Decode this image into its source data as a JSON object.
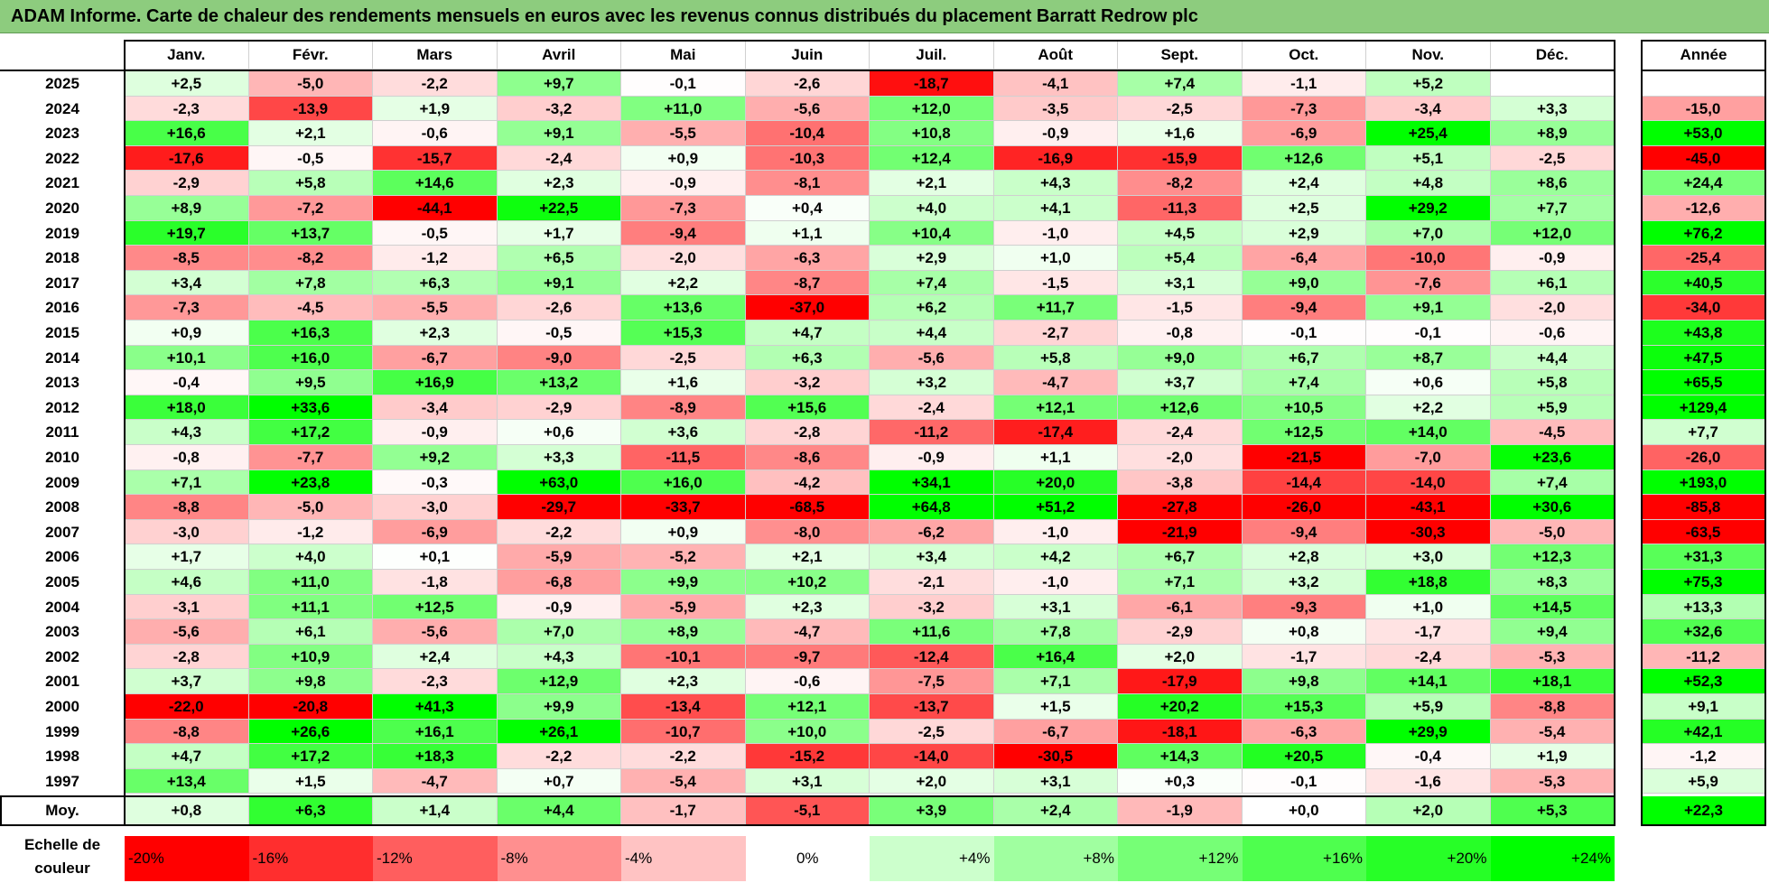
{
  "title": "ADAM Informe. Carte de chaleur des rendements mensuels en euros avec les revenus connus distribués du placement Barratt Redrow plc",
  "chart_data": {
    "type": "heatmap",
    "columns": [
      "Janv.",
      "Févr.",
      "Mars",
      "Avril",
      "Mai",
      "Juin",
      "Juil.",
      "Août",
      "Sept.",
      "Oct.",
      "Nov.",
      "Déc."
    ],
    "annual_header": "Année",
    "average_label": "Moy.",
    "rows": [
      {
        "year": "2025",
        "values": [
          "+2,5",
          "-5,0",
          "-2,2",
          "+9,7",
          "-0,1",
          "-2,6",
          "-18,7",
          "-4,1",
          "+7,4",
          "-1,1",
          "+5,2",
          ""
        ],
        "annual": ""
      },
      {
        "year": "2024",
        "values": [
          "-2,3",
          "-13,9",
          "+1,9",
          "-3,2",
          "+11,0",
          "-5,6",
          "+12,0",
          "-3,5",
          "-2,5",
          "-7,3",
          "-3,4",
          "+3,3"
        ],
        "annual": "-15,0"
      },
      {
        "year": "2023",
        "values": [
          "+16,6",
          "+2,1",
          "-0,6",
          "+9,1",
          "-5,5",
          "-10,4",
          "+10,8",
          "-0,9",
          "+1,6",
          "-6,9",
          "+25,4",
          "+8,9"
        ],
        "annual": "+53,0"
      },
      {
        "year": "2022",
        "values": [
          "-17,6",
          "-0,5",
          "-15,7",
          "-2,4",
          "+0,9",
          "-10,3",
          "+12,4",
          "-16,9",
          "-15,9",
          "+12,6",
          "+5,1",
          "-2,5"
        ],
        "annual": "-45,0"
      },
      {
        "year": "2021",
        "values": [
          "-2,9",
          "+5,8",
          "+14,6",
          "+2,3",
          "-0,9",
          "-8,1",
          "+2,1",
          "+4,3",
          "-8,2",
          "+2,4",
          "+4,8",
          "+8,6"
        ],
        "annual": "+24,4"
      },
      {
        "year": "2020",
        "values": [
          "+8,9",
          "-7,2",
          "-44,1",
          "+22,5",
          "-7,3",
          "+0,4",
          "+4,0",
          "+4,1",
          "-11,3",
          "+2,5",
          "+29,2",
          "+7,7"
        ],
        "annual": "-12,6"
      },
      {
        "year": "2019",
        "values": [
          "+19,7",
          "+13,7",
          "-0,5",
          "+1,7",
          "-9,4",
          "+1,1",
          "+10,4",
          "-1,0",
          "+4,5",
          "+2,9",
          "+7,0",
          "+12,0"
        ],
        "annual": "+76,2"
      },
      {
        "year": "2018",
        "values": [
          "-8,5",
          "-8,2",
          "-1,2",
          "+6,5",
          "-2,0",
          "-6,3",
          "+2,9",
          "+1,0",
          "+5,4",
          "-6,4",
          "-10,0",
          "-0,9"
        ],
        "annual": "-25,4"
      },
      {
        "year": "2017",
        "values": [
          "+3,4",
          "+7,8",
          "+6,3",
          "+9,1",
          "+2,2",
          "-8,7",
          "+7,4",
          "-1,5",
          "+3,1",
          "+9,0",
          "-7,6",
          "+6,1"
        ],
        "annual": "+40,5"
      },
      {
        "year": "2016",
        "values": [
          "-7,3",
          "-4,5",
          "-5,5",
          "-2,6",
          "+13,6",
          "-37,0",
          "+6,2",
          "+11,7",
          "-1,5",
          "-9,4",
          "+9,1",
          "-2,0"
        ],
        "annual": "-34,0"
      },
      {
        "year": "2015",
        "values": [
          "+0,9",
          "+16,3",
          "+2,3",
          "-0,5",
          "+15,3",
          "+4,7",
          "+4,4",
          "-2,7",
          "-0,8",
          "-0,1",
          "-0,1",
          "-0,6"
        ],
        "annual": "+43,8"
      },
      {
        "year": "2014",
        "values": [
          "+10,1",
          "+16,0",
          "-6,7",
          "-9,0",
          "-2,5",
          "+6,3",
          "-5,6",
          "+5,8",
          "+9,0",
          "+6,7",
          "+8,7",
          "+4,4"
        ],
        "annual": "+47,5"
      },
      {
        "year": "2013",
        "values": [
          "-0,4",
          "+9,5",
          "+16,9",
          "+13,2",
          "+1,6",
          "-3,2",
          "+3,2",
          "-4,7",
          "+3,7",
          "+7,4",
          "+0,6",
          "+5,8"
        ],
        "annual": "+65,5"
      },
      {
        "year": "2012",
        "values": [
          "+18,0",
          "+33,6",
          "-3,4",
          "-2,9",
          "-8,9",
          "+15,6",
          "-2,4",
          "+12,1",
          "+12,6",
          "+10,5",
          "+2,2",
          "+5,9"
        ],
        "annual": "+129,4"
      },
      {
        "year": "2011",
        "values": [
          "+4,3",
          "+17,2",
          "-0,9",
          "+0,6",
          "+3,6",
          "-2,8",
          "-11,2",
          "-17,4",
          "-2,4",
          "+12,5",
          "+14,0",
          "-4,5"
        ],
        "annual": "+7,7"
      },
      {
        "year": "2010",
        "values": [
          "-0,8",
          "-7,7",
          "+9,2",
          "+3,3",
          "-11,5",
          "-8,6",
          "-0,9",
          "+1,1",
          "-2,0",
          "-21,5",
          "-7,0",
          "+23,6"
        ],
        "annual": "-26,0"
      },
      {
        "year": "2009",
        "values": [
          "+7,1",
          "+23,8",
          "-0,3",
          "+63,0",
          "+16,0",
          "-4,2",
          "+34,1",
          "+20,0",
          "-3,8",
          "-14,4",
          "-14,0",
          "+7,4"
        ],
        "annual": "+193,0"
      },
      {
        "year": "2008",
        "values": [
          "-8,8",
          "-5,0",
          "-3,0",
          "-29,7",
          "-33,7",
          "-68,5",
          "+64,8",
          "+51,2",
          "-27,8",
          "-26,0",
          "-43,1",
          "+30,6"
        ],
        "annual": "-85,8"
      },
      {
        "year": "2007",
        "values": [
          "-3,0",
          "-1,2",
          "-6,9",
          "-2,2",
          "+0,9",
          "-8,0",
          "-6,2",
          "-1,0",
          "-21,9",
          "-9,4",
          "-30,3",
          "-5,0"
        ],
        "annual": "-63,5"
      },
      {
        "year": "2006",
        "values": [
          "+1,7",
          "+4,0",
          "+0,1",
          "-5,9",
          "-5,2",
          "+2,1",
          "+3,4",
          "+4,2",
          "+6,7",
          "+2,8",
          "+3,0",
          "+12,3"
        ],
        "annual": "+31,3"
      },
      {
        "year": "2005",
        "values": [
          "+4,6",
          "+11,0",
          "-1,8",
          "-6,8",
          "+9,9",
          "+10,2",
          "-2,1",
          "-1,0",
          "+7,1",
          "+3,2",
          "+18,8",
          "+8,3"
        ],
        "annual": "+75,3"
      },
      {
        "year": "2004",
        "values": [
          "-3,1",
          "+11,1",
          "+12,5",
          "-0,9",
          "-5,9",
          "+2,3",
          "-3,2",
          "+3,1",
          "-6,1",
          "-9,3",
          "+1,0",
          "+14,5"
        ],
        "annual": "+13,3"
      },
      {
        "year": "2003",
        "values": [
          "-5,6",
          "+6,1",
          "-5,6",
          "+7,0",
          "+8,9",
          "-4,7",
          "+11,6",
          "+7,8",
          "-2,9",
          "+0,8",
          "-1,7",
          "+9,4"
        ],
        "annual": "+32,6"
      },
      {
        "year": "2002",
        "values": [
          "-2,8",
          "+10,9",
          "+2,4",
          "+4,3",
          "-10,1",
          "-9,7",
          "-12,4",
          "+16,4",
          "+2,0",
          "-1,7",
          "-2,4",
          "-5,3"
        ],
        "annual": "-11,2"
      },
      {
        "year": "2001",
        "values": [
          "+3,7",
          "+9,8",
          "-2,3",
          "+12,9",
          "+2,3",
          "-0,6",
          "-7,5",
          "+7,1",
          "-17,9",
          "+9,8",
          "+14,1",
          "+18,1"
        ],
        "annual": "+52,3"
      },
      {
        "year": "2000",
        "values": [
          "-22,0",
          "-20,8",
          "+41,3",
          "+9,9",
          "-13,4",
          "+12,1",
          "-13,7",
          "+1,5",
          "+20,2",
          "+15,3",
          "+5,9",
          "-8,8"
        ],
        "annual": "+9,1"
      },
      {
        "year": "1999",
        "values": [
          "-8,8",
          "+26,6",
          "+16,1",
          "+26,1",
          "-10,7",
          "+10,0",
          "-2,5",
          "-6,7",
          "-18,1",
          "-6,3",
          "+29,9",
          "-5,4"
        ],
        "annual": "+42,1"
      },
      {
        "year": "1998",
        "values": [
          "+4,7",
          "+17,2",
          "+18,3",
          "-2,2",
          "-2,2",
          "-15,2",
          "-14,0",
          "-30,5",
          "+14,3",
          "+20,5",
          "-0,4",
          "+1,9"
        ],
        "annual": "-1,2"
      },
      {
        "year": "1997",
        "values": [
          "+13,4",
          "+1,5",
          "-4,7",
          "+0,7",
          "-5,4",
          "+3,1",
          "+2,0",
          "+3,1",
          "+0,3",
          "-0,1",
          "-1,6",
          "-5,3"
        ],
        "annual": "+5,9"
      }
    ],
    "average": {
      "values": [
        "+0,8",
        "+6,3",
        "+1,4",
        "+4,4",
        "-1,7",
        "-5,1",
        "+3,9",
        "+2,4",
        "-1,9",
        "+0,0",
        "+2,0",
        "+5,3"
      ],
      "annual": "+22,3"
    },
    "legend": {
      "label_line1": "Echelle de",
      "label_line2": "couleur",
      "stops": [
        "-20%",
        "-16%",
        "-12%",
        "-8%",
        "-4%",
        "0%",
        "+4%",
        "+8%",
        "+12%",
        "+16%",
        "+20%",
        "+24%"
      ],
      "stop_values": [
        -20,
        -16,
        -12,
        -8,
        -4,
        0,
        4,
        8,
        12,
        16,
        20,
        24
      ]
    },
    "colors": {
      "neg_max": "#ff0000",
      "zero": "#ffffff",
      "pos_max": "#00ff00",
      "title_bg": "#8dcc7e"
    }
  }
}
